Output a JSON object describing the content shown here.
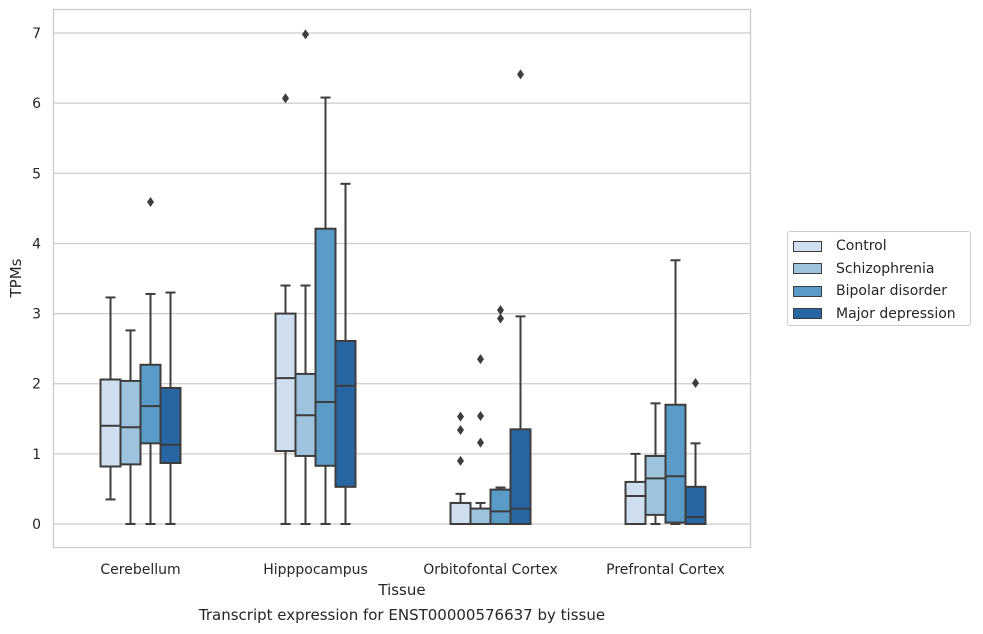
{
  "chart_data": {
    "type": "box",
    "title": "",
    "caption": "Transcript expression for ENST00000576637 by tissue",
    "xlabel": "Tissue",
    "ylabel": "TPMs",
    "ylim": [
      -0.33,
      7.35
    ],
    "yticks": [
      "0",
      "1",
      "2",
      "3",
      "4",
      "5",
      "6",
      "7"
    ],
    "grid": "horizontal",
    "legend_position": "right",
    "categories": [
      "Cerebellum",
      "Hipppocampus",
      "Orbitofontal Cortex",
      "Prefrontal Cortex"
    ],
    "series": [
      {
        "name": "Control",
        "color": "#cfdff0",
        "boxes": [
          {
            "whisker_low": 0.35,
            "q1": 0.82,
            "median": 1.4,
            "q3": 2.06,
            "whisker_high": 3.23,
            "outliers": []
          },
          {
            "whisker_low": 0.0,
            "q1": 1.04,
            "median": 2.08,
            "q3": 3.0,
            "whisker_high": 3.4,
            "outliers": [
              6.07
            ]
          },
          {
            "whisker_low": 0.0,
            "q1": 0.0,
            "median": 0.0,
            "q3": 0.3,
            "whisker_high": 0.43,
            "outliers": [
              0.9,
              1.34,
              1.53
            ]
          },
          {
            "whisker_low": 0.0,
            "q1": 0.0,
            "median": 0.4,
            "q3": 0.6,
            "whisker_high": 1.0,
            "outliers": []
          }
        ]
      },
      {
        "name": "Schizophrenia",
        "color": "#9dc3dd",
        "boxes": [
          {
            "whisker_low": 0.0,
            "q1": 0.85,
            "median": 1.38,
            "q3": 2.04,
            "whisker_high": 2.76,
            "outliers": []
          },
          {
            "whisker_low": 0.0,
            "q1": 0.97,
            "median": 1.55,
            "q3": 2.14,
            "whisker_high": 3.4,
            "outliers": [
              6.98
            ]
          },
          {
            "whisker_low": 0.0,
            "q1": 0.0,
            "median": 0.0,
            "q3": 0.22,
            "whisker_high": 0.3,
            "outliers": [
              1.16,
              1.54,
              2.35
            ]
          },
          {
            "whisker_low": 0.0,
            "q1": 0.13,
            "median": 0.65,
            "q3": 0.97,
            "whisker_high": 1.72,
            "outliers": []
          }
        ]
      },
      {
        "name": "Bipolar disorder",
        "color": "#5b9bc7",
        "boxes": [
          {
            "whisker_low": 0.0,
            "q1": 1.15,
            "median": 1.68,
            "q3": 2.27,
            "whisker_high": 3.28,
            "outliers": [
              4.59
            ]
          },
          {
            "whisker_low": 0.0,
            "q1": 0.83,
            "median": 1.74,
            "q3": 4.21,
            "whisker_high": 6.08,
            "outliers": []
          },
          {
            "whisker_low": 0.0,
            "q1": 0.0,
            "median": 0.18,
            "q3": 0.49,
            "whisker_high": 0.52,
            "outliers": [
              2.93,
              3.05
            ]
          },
          {
            "whisker_low": 0.0,
            "q1": 0.02,
            "median": 0.68,
            "q3": 1.7,
            "whisker_high": 3.76,
            "outliers": []
          }
        ]
      },
      {
        "name": "Major depression",
        "color": "#2766a3",
        "boxes": [
          {
            "whisker_low": 0.0,
            "q1": 0.87,
            "median": 1.13,
            "q3": 1.94,
            "whisker_high": 3.3,
            "outliers": []
          },
          {
            "whisker_low": 0.0,
            "q1": 0.53,
            "median": 1.97,
            "q3": 2.61,
            "whisker_high": 4.85,
            "outliers": []
          },
          {
            "whisker_low": 0.0,
            "q1": 0.0,
            "median": 0.22,
            "q3": 1.35,
            "whisker_high": 2.96,
            "outliers": [
              6.41
            ]
          },
          {
            "whisker_low": 0.0,
            "q1": 0.0,
            "median": 0.1,
            "q3": 0.53,
            "whisker_high": 1.15,
            "outliers": [
              2.01
            ]
          }
        ]
      }
    ]
  }
}
